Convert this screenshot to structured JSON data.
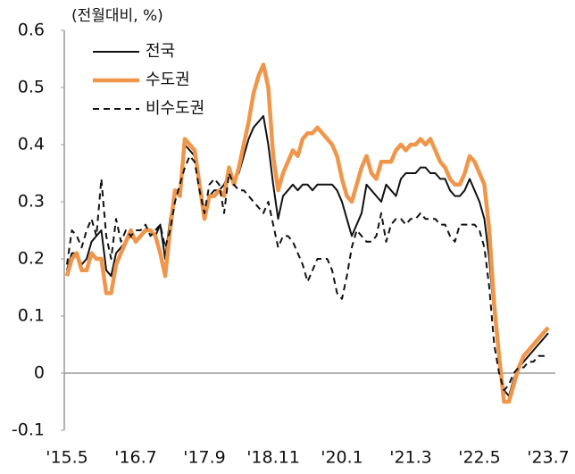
{
  "chart_data": {
    "type": "line",
    "y_axis_label": "(전월대비, %)",
    "categories": [
      "'15.5",
      null,
      null,
      null,
      null,
      null,
      null,
      null,
      null,
      null,
      null,
      null,
      null,
      null,
      "'16.7",
      null,
      null,
      null,
      null,
      null,
      null,
      null,
      null,
      null,
      null,
      null,
      null,
      null,
      "'17.9",
      null,
      null,
      null,
      null,
      null,
      null,
      null,
      null,
      null,
      null,
      null,
      null,
      null,
      "'18.11",
      null,
      null,
      null,
      null,
      null,
      null,
      null,
      null,
      null,
      null,
      null,
      null,
      null,
      "'20.1",
      null,
      null,
      null,
      null,
      null,
      null,
      null,
      null,
      null,
      null,
      null,
      null,
      null,
      "'21.3",
      null,
      null,
      null,
      null,
      null,
      null,
      null,
      null,
      null,
      null,
      null,
      null,
      null,
      "'22.5",
      null,
      null,
      null,
      null,
      null,
      null,
      null,
      null,
      null,
      null,
      null,
      null,
      null,
      "'23.7"
    ],
    "series": [
      {
        "name": "전국",
        "color": "#111111",
        "line_style": "solid",
        "values": [
          0.18,
          0.21,
          0.21,
          0.19,
          0.2,
          0.23,
          0.24,
          0.25,
          0.18,
          0.17,
          0.21,
          0.22,
          0.23,
          0.24,
          0.23,
          0.24,
          0.25,
          0.25,
          0.24,
          0.26,
          0.2,
          0.27,
          0.32,
          0.32,
          0.4,
          0.39,
          0.38,
          0.33,
          0.28,
          0.31,
          0.32,
          0.32,
          0.33,
          0.35,
          0.34,
          0.35,
          0.38,
          0.41,
          0.43,
          0.44,
          0.45,
          0.4,
          0.33,
          0.27,
          0.31,
          0.32,
          0.33,
          0.32,
          0.33,
          0.33,
          0.32,
          0.33,
          0.33,
          0.33,
          0.33,
          0.32,
          0.3,
          0.27,
          0.24,
          0.26,
          0.28,
          0.33,
          0.32,
          0.31,
          0.3,
          0.33,
          0.32,
          0.31,
          0.34,
          0.35,
          0.35,
          0.35,
          0.36,
          0.36,
          0.35,
          0.35,
          0.34,
          0.34,
          0.32,
          0.31,
          0.31,
          0.32,
          0.34,
          0.32,
          0.3,
          0.27,
          0.2,
          0.1,
          0.02,
          -0.03,
          -0.04,
          -0.01,
          0.01,
          0.02,
          0.03,
          0.04,
          0.05,
          0.06,
          0.07
        ]
      },
      {
        "name": "수도권",
        "color": "#f0964b",
        "line_style": "solid",
        "values": [
          0.17,
          0.2,
          0.21,
          0.18,
          0.18,
          0.21,
          0.2,
          0.2,
          0.14,
          0.14,
          0.19,
          0.21,
          0.23,
          0.25,
          0.23,
          0.24,
          0.25,
          0.25,
          0.24,
          0.21,
          0.17,
          0.25,
          0.32,
          0.31,
          0.41,
          0.4,
          0.39,
          0.33,
          0.27,
          0.31,
          0.31,
          0.32,
          0.31,
          0.36,
          0.33,
          0.36,
          0.4,
          0.44,
          0.49,
          0.52,
          0.54,
          0.5,
          0.38,
          0.32,
          0.35,
          0.37,
          0.39,
          0.38,
          0.41,
          0.42,
          0.42,
          0.43,
          0.42,
          0.41,
          0.4,
          0.38,
          0.34,
          0.31,
          0.3,
          0.33,
          0.36,
          0.38,
          0.35,
          0.34,
          0.37,
          0.37,
          0.37,
          0.39,
          0.4,
          0.39,
          0.4,
          0.4,
          0.41,
          0.4,
          0.41,
          0.39,
          0.37,
          0.36,
          0.34,
          0.33,
          0.33,
          0.35,
          0.38,
          0.37,
          0.35,
          0.33,
          0.25,
          0.12,
          0.03,
          -0.05,
          -0.05,
          -0.02,
          0.01,
          0.03,
          0.04,
          0.05,
          0.06,
          0.07,
          0.08
        ]
      },
      {
        "name": "비수도권",
        "color": "#111111",
        "line_style": "dashed",
        "values": [
          0.19,
          0.25,
          0.24,
          0.22,
          0.25,
          0.27,
          0.24,
          0.34,
          0.24,
          0.2,
          0.27,
          0.23,
          0.25,
          0.24,
          0.25,
          0.25,
          0.26,
          0.24,
          0.25,
          0.26,
          0.22,
          0.25,
          0.3,
          0.33,
          0.36,
          0.38,
          0.37,
          0.32,
          0.28,
          0.33,
          0.34,
          0.33,
          0.28,
          0.35,
          0.33,
          0.32,
          0.32,
          0.31,
          0.3,
          0.29,
          0.28,
          0.3,
          0.26,
          0.22,
          0.24,
          0.24,
          0.23,
          0.21,
          0.19,
          0.16,
          0.18,
          0.2,
          0.2,
          0.2,
          0.18,
          0.14,
          0.13,
          0.17,
          0.22,
          0.25,
          0.24,
          0.23,
          0.23,
          0.24,
          0.28,
          0.23,
          0.26,
          0.27,
          0.27,
          0.26,
          0.27,
          0.27,
          0.28,
          0.27,
          0.27,
          0.27,
          0.26,
          0.26,
          0.24,
          0.23,
          0.26,
          0.26,
          0.26,
          0.26,
          0.25,
          0.22,
          0.15,
          0.05,
          0,
          -0.03,
          -0.02,
          0,
          0.01,
          0.01,
          0.02,
          0.02,
          0.03,
          0.03,
          0.03
        ]
      }
    ],
    "ylim": [
      -0.1,
      0.6
    ],
    "yticks": [
      -0.1,
      0,
      0.1,
      0.2,
      0.3,
      0.4,
      0.5,
      0.6
    ],
    "grid": false
  }
}
